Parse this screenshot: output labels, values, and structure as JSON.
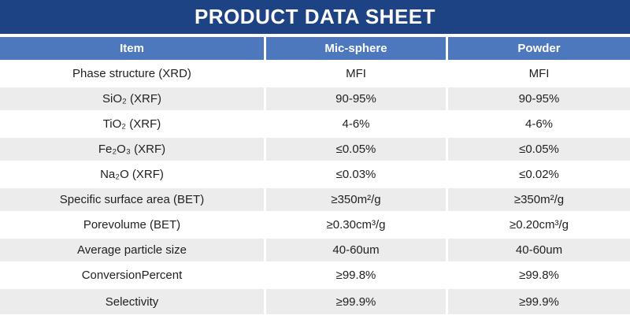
{
  "title_bar": {
    "title": "PRODUCT DATA SHEET",
    "background_color": "#1e4384",
    "text_color": "#ffffff"
  },
  "table": {
    "header": {
      "background_color": "#4d78be",
      "text_color": "#ffffff",
      "columns": [
        "Item",
        "Mic-sphere",
        "Powder"
      ]
    },
    "row_colors": {
      "unshaded": "#ffffff",
      "shaded": "#ececec",
      "border": "#ffffff",
      "text": "#1f1f1f"
    },
    "rows": [
      {
        "item": "Phase structure (XRD)",
        "mic_sphere": "MFI",
        "powder": "MFI",
        "shaded": false
      },
      {
        "item": "SiO₂ (XRF)",
        "mic_sphere": "90-95%",
        "powder": "90-95%",
        "shaded": true
      },
      {
        "item": "TiO₂ (XRF)",
        "mic_sphere": "4-6%",
        "powder": "4-6%",
        "shaded": false
      },
      {
        "item": "Fe₂O₃ (XRF)",
        "mic_sphere": "≤0.05%",
        "powder": "≤0.05%",
        "shaded": true
      },
      {
        "item": "Na₂O (XRF)",
        "mic_sphere": "≤0.03%",
        "powder": "≤0.02%",
        "shaded": false
      },
      {
        "item": "Specific surface area (BET)",
        "mic_sphere": "≥350m²/g",
        "powder": "≥350m²/g",
        "shaded": true
      },
      {
        "item": "Porevolume (BET)",
        "mic_sphere": "≥0.30cm³/g",
        "powder": "≥0.20cm³/g",
        "shaded": false
      },
      {
        "item": "Average particle size",
        "mic_sphere": "40-60um",
        "powder": "40-60um",
        "shaded": true
      },
      {
        "item": "ConversionPercent",
        "mic_sphere": "≥99.8%",
        "powder": "≥99.8%",
        "shaded": false
      },
      {
        "item": "Selectivity",
        "mic_sphere": "≥99.9%",
        "powder": "≥99.9%",
        "shaded": true
      }
    ]
  }
}
